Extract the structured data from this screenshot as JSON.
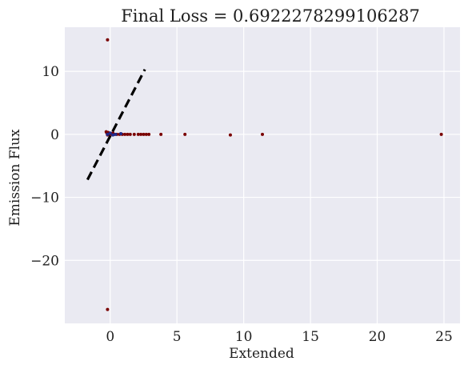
{
  "chart_data": {
    "type": "scatter",
    "title": "Final Loss = 0.6922278299106287",
    "xlabel": "Extended",
    "ylabel": "Emission Flux",
    "xlim": [
      -3.4,
      26.2
    ],
    "ylim": [
      -30.0,
      17.0
    ],
    "grid": true,
    "background_color": "#eaeaf2",
    "grid_color": "#ffffff",
    "x_ticks": [
      0,
      5,
      10,
      15,
      20,
      25
    ],
    "y_ticks": [
      -20,
      -10,
      0,
      10
    ],
    "x_tick_labels": [
      "0",
      "5",
      "10",
      "15",
      "20",
      "25"
    ],
    "y_tick_labels": [
      "−20",
      "−10",
      "0",
      "10"
    ],
    "series": [
      {
        "marker_color": "#7a0000",
        "points": [
          {
            "x": -0.2,
            "y": 15.0
          },
          {
            "x": -0.2,
            "y": -27.8
          },
          {
            "x": -0.3,
            "y": 0.4
          },
          {
            "x": -0.25,
            "y": 0.2
          },
          {
            "x": -0.2,
            "y": -0.1
          },
          {
            "x": -0.15,
            "y": 0.3
          },
          {
            "x": -0.1,
            "y": 0.0
          },
          {
            "x": 0.0,
            "y": 0.1
          },
          {
            "x": 0.1,
            "y": 0.0
          },
          {
            "x": 0.2,
            "y": 0.2
          },
          {
            "x": 0.3,
            "y": 0.0
          },
          {
            "x": 0.5,
            "y": 0.0
          },
          {
            "x": 0.7,
            "y": 0.0
          },
          {
            "x": 0.9,
            "y": 0.0
          },
          {
            "x": 1.1,
            "y": 0.0
          },
          {
            "x": 1.3,
            "y": 0.0
          },
          {
            "x": 1.5,
            "y": 0.0
          },
          {
            "x": 1.8,
            "y": 0.0
          },
          {
            "x": 2.1,
            "y": 0.0
          },
          {
            "x": 2.3,
            "y": 0.0
          },
          {
            "x": 2.5,
            "y": 0.0
          },
          {
            "x": 2.7,
            "y": 0.0
          },
          {
            "x": 2.9,
            "y": 0.0
          },
          {
            "x": 3.8,
            "y": 0.0
          },
          {
            "x": 5.6,
            "y": 0.0
          },
          {
            "x": 9.0,
            "y": -0.1
          },
          {
            "x": 11.4,
            "y": 0.0
          },
          {
            "x": 24.8,
            "y": 0.0
          }
        ]
      },
      {
        "marker_color": "#1f2a8a",
        "points": [
          {
            "x": -0.2,
            "y": 0.0
          },
          {
            "x": 0.0,
            "y": 0.2
          },
          {
            "x": 0.2,
            "y": -0.1
          },
          {
            "x": 0.4,
            "y": 0.0
          },
          {
            "x": 0.8,
            "y": 0.1
          }
        ]
      }
    ],
    "reference_line": {
      "style": "dashed",
      "color": "#000000",
      "x": [
        -1.7,
        2.6
      ],
      "y": [
        -7.2,
        10.3
      ]
    }
  }
}
